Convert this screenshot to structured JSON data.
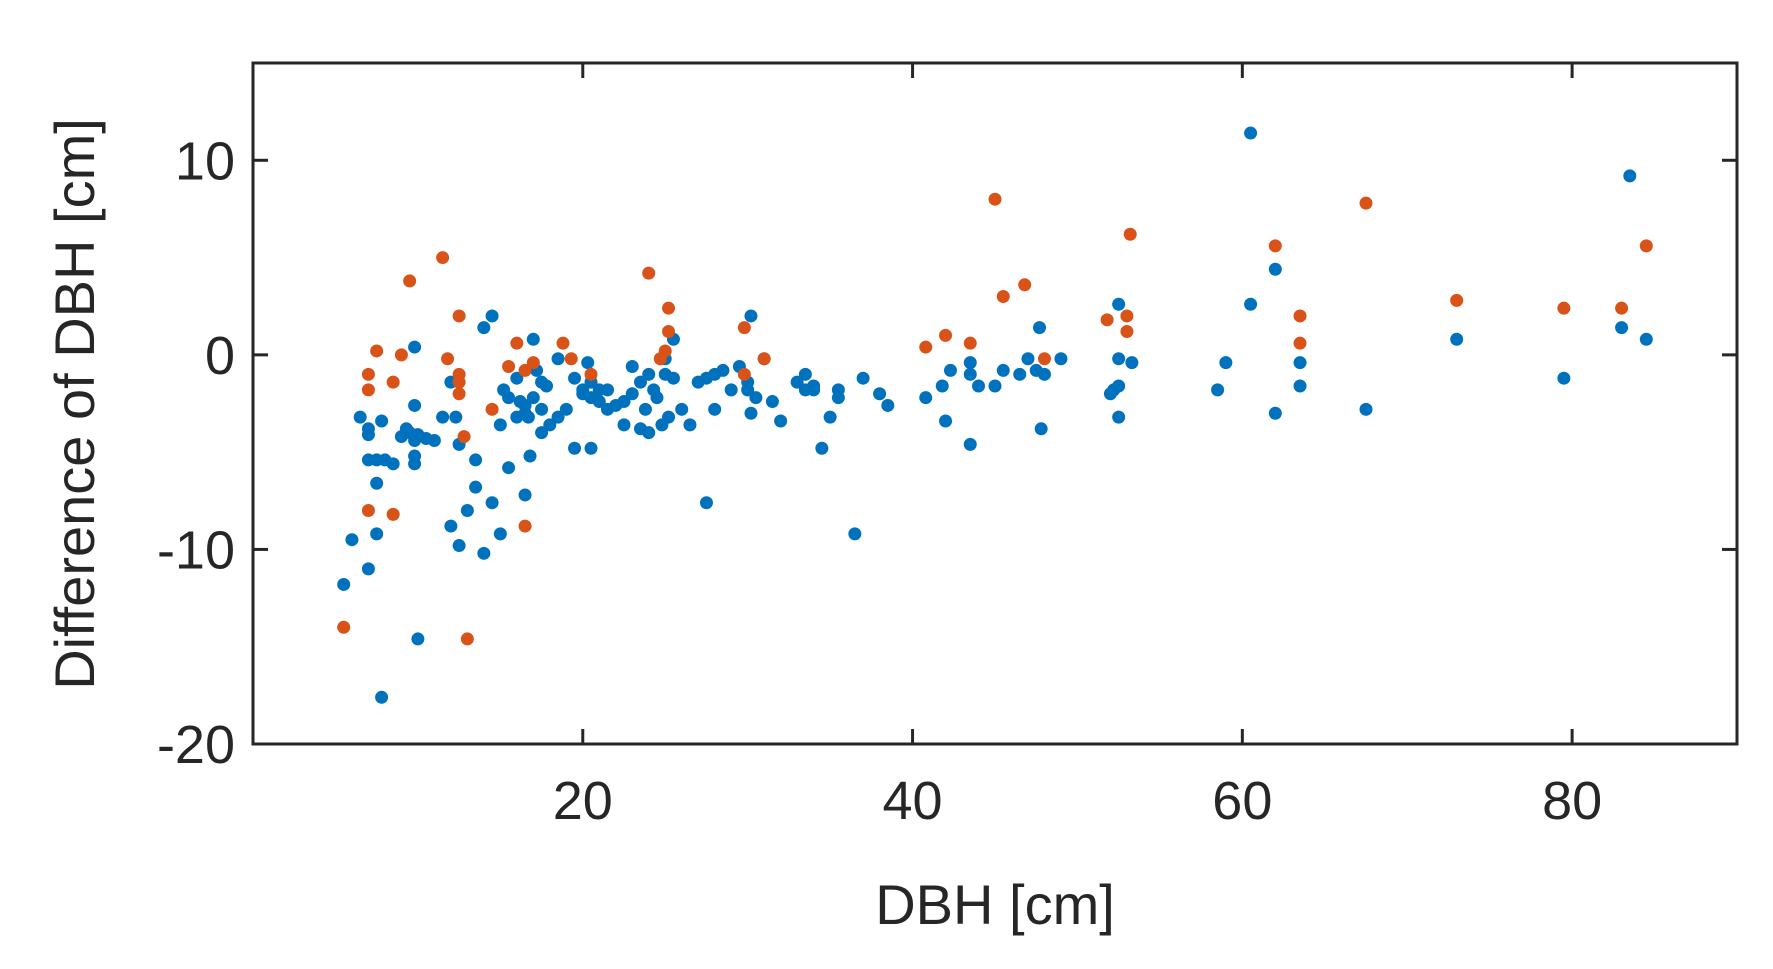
{
  "chart_data": {
    "type": "scatter",
    "xlabel": "DBH [cm]",
    "ylabel": "Difference of DBH [cm]",
    "xlim": [
      0,
      90
    ],
    "ylim": [
      -20,
      15
    ],
    "xticks": [
      20,
      40,
      60,
      80
    ],
    "yticks": [
      -20,
      -10,
      0,
      10
    ],
    "grid": false,
    "series": [
      {
        "color": "#0072BD",
        "points": [
          [
            5.5,
            -11.8
          ],
          [
            6,
            -9.5
          ],
          [
            6.5,
            -3.2
          ],
          [
            7,
            -3.8
          ],
          [
            7,
            -4.1
          ],
          [
            7,
            -5.4
          ],
          [
            7,
            -11
          ],
          [
            7.5,
            -5.4
          ],
          [
            7.5,
            -6.6
          ],
          [
            7.5,
            -9.2
          ],
          [
            7.8,
            -3.4
          ],
          [
            7.8,
            -17.6
          ],
          [
            8,
            -5.4
          ],
          [
            8.5,
            -5.6
          ],
          [
            9,
            -4.2
          ],
          [
            9.3,
            -3.8
          ],
          [
            9.5,
            -4
          ],
          [
            9.8,
            -4.4
          ],
          [
            9.8,
            -5.2
          ],
          [
            9.8,
            -5.6
          ],
          [
            9.8,
            -2.6
          ],
          [
            9.8,
            0.4
          ],
          [
            10,
            -14.6
          ],
          [
            10,
            -4.1
          ],
          [
            10.5,
            -4.3
          ],
          [
            11,
            -4.4
          ],
          [
            11.5,
            -3.2
          ],
          [
            12,
            -1.4
          ],
          [
            12,
            -8.8
          ],
          [
            12.3,
            -3.2
          ],
          [
            12.5,
            -4.6
          ],
          [
            12.5,
            -9.8
          ],
          [
            13,
            -8
          ],
          [
            13.5,
            -5.4
          ],
          [
            13.5,
            -6.8
          ],
          [
            14,
            1.4
          ],
          [
            14,
            -10.2
          ],
          [
            14.5,
            -7.6
          ],
          [
            14.5,
            2
          ],
          [
            15,
            -3.6
          ],
          [
            15,
            -9.2
          ],
          [
            15.2,
            -1.8
          ],
          [
            15.5,
            -2.2
          ],
          [
            15.5,
            -5.8
          ],
          [
            16,
            -1.2
          ],
          [
            16,
            -3.2
          ],
          [
            16.2,
            -2.4
          ],
          [
            16.5,
            -2.6
          ],
          [
            16.5,
            -3
          ],
          [
            16.5,
            -7.2
          ],
          [
            16.7,
            -3.2
          ],
          [
            16.8,
            -5.2
          ],
          [
            17,
            0.8
          ],
          [
            17,
            -2.2
          ],
          [
            17.2,
            -0.8
          ],
          [
            17.5,
            -1.4
          ],
          [
            17.5,
            -2.8
          ],
          [
            17.5,
            -4
          ],
          [
            17.8,
            -1.6
          ],
          [
            18,
            -3.6
          ],
          [
            18.5,
            -0.2
          ],
          [
            18.5,
            -3.2
          ],
          [
            19,
            -2.8
          ],
          [
            19.5,
            -1.2
          ],
          [
            19.5,
            -4.8
          ],
          [
            20,
            -1.8
          ],
          [
            20,
            -2
          ],
          [
            20.3,
            -0.4
          ],
          [
            20.5,
            -1.4
          ],
          [
            20.5,
            -2.2
          ],
          [
            20.5,
            -4.8
          ],
          [
            21,
            -1.8
          ],
          [
            21,
            -2.4
          ],
          [
            21.5,
            -1.8
          ],
          [
            21.5,
            -2.8
          ],
          [
            22,
            -2.6
          ],
          [
            22.5,
            -2.4
          ],
          [
            22.5,
            -3.6
          ],
          [
            23,
            -0.6
          ],
          [
            23,
            -2
          ],
          [
            23.5,
            -1.4
          ],
          [
            23.5,
            -3.8
          ],
          [
            23.8,
            -2.8
          ],
          [
            24,
            -1
          ],
          [
            24,
            -4
          ],
          [
            24.3,
            -1.8
          ],
          [
            24.5,
            -2.2
          ],
          [
            24.8,
            -3.6
          ],
          [
            25,
            -0.2
          ],
          [
            25,
            -1
          ],
          [
            25.2,
            -3.2
          ],
          [
            25.5,
            0.8
          ],
          [
            25.5,
            -1.2
          ],
          [
            26,
            -2.8
          ],
          [
            26.5,
            -3.6
          ],
          [
            27,
            -1.4
          ],
          [
            27.5,
            -1.2
          ],
          [
            27.5,
            -7.6
          ],
          [
            28,
            -1
          ],
          [
            28,
            -2.8
          ],
          [
            28.5,
            -0.8
          ],
          [
            29,
            -1.8
          ],
          [
            29.5,
            -0.6
          ],
          [
            30,
            -1.4
          ],
          [
            30,
            -1.8
          ],
          [
            30.2,
            -3
          ],
          [
            30.2,
            2
          ],
          [
            30.5,
            -2.2
          ],
          [
            31,
            -0.2
          ],
          [
            31.5,
            -2.4
          ],
          [
            32,
            -3.4
          ],
          [
            33,
            -1.4
          ],
          [
            33.5,
            -1
          ],
          [
            33.5,
            -1.8
          ],
          [
            34,
            -1.6
          ],
          [
            34,
            -1.8
          ],
          [
            34.5,
            -4.8
          ],
          [
            35,
            -3.2
          ],
          [
            35.5,
            -1.8
          ],
          [
            35.5,
            -2.2
          ],
          [
            36.5,
            -9.2
          ],
          [
            37,
            -1.2
          ],
          [
            38,
            -2
          ],
          [
            38.5,
            -2.6
          ],
          [
            40.8,
            -2.2
          ],
          [
            41.8,
            -1.6
          ],
          [
            42,
            -3.4
          ],
          [
            42.3,
            -0.8
          ],
          [
            43.5,
            -1
          ],
          [
            43.5,
            -0.4
          ],
          [
            43.5,
            -4.6
          ],
          [
            44,
            -1.6
          ],
          [
            45,
            -1.6
          ],
          [
            45.5,
            -0.8
          ],
          [
            46.5,
            -1
          ],
          [
            47,
            -0.2
          ],
          [
            47.5,
            -0.8
          ],
          [
            47.7,
            1.4
          ],
          [
            47.8,
            -3.8
          ],
          [
            48,
            -1
          ],
          [
            49,
            -0.2
          ],
          [
            52,
            -2
          ],
          [
            52.2,
            -1.8
          ],
          [
            52.5,
            2.6
          ],
          [
            52.5,
            -0.2
          ],
          [
            52.5,
            -1.6
          ],
          [
            52.5,
            -3.2
          ],
          [
            53.3,
            -0.4
          ],
          [
            58.5,
            -1.8
          ],
          [
            59,
            -0.4
          ],
          [
            60.5,
            11.4
          ],
          [
            60.5,
            2.6
          ],
          [
            62,
            4.4
          ],
          [
            62,
            -3
          ],
          [
            63.5,
            -0.4
          ],
          [
            63.5,
            -1.6
          ],
          [
            67.5,
            -2.8
          ],
          [
            73,
            0.8
          ],
          [
            79.5,
            -1.2
          ],
          [
            83,
            1.4
          ],
          [
            83.5,
            9.2
          ],
          [
            84.5,
            0.8
          ]
        ]
      },
      {
        "color": "#D95319",
        "points": [
          [
            5.5,
            -14
          ],
          [
            7,
            -1
          ],
          [
            7,
            -1.8
          ],
          [
            7,
            -8
          ],
          [
            7.5,
            0.2
          ],
          [
            8.5,
            -1.4
          ],
          [
            8.5,
            -8.2
          ],
          [
            9,
            0
          ],
          [
            9.5,
            3.8
          ],
          [
            11.5,
            5
          ],
          [
            11.8,
            -0.2
          ],
          [
            12.5,
            -1
          ],
          [
            12.5,
            2
          ],
          [
            12.5,
            -1.4
          ],
          [
            12.5,
            -2
          ],
          [
            12.8,
            -4.2
          ],
          [
            13,
            -14.6
          ],
          [
            14.5,
            -2.8
          ],
          [
            15.5,
            -0.6
          ],
          [
            16,
            0.6
          ],
          [
            16.5,
            -8.8
          ],
          [
            16.5,
            -0.8
          ],
          [
            17,
            -0.4
          ],
          [
            18.8,
            0.6
          ],
          [
            19.3,
            -0.2
          ],
          [
            20.5,
            -1
          ],
          [
            24,
            4.2
          ],
          [
            24.7,
            -0.2
          ],
          [
            25,
            0.2
          ],
          [
            25.2,
            1.2
          ],
          [
            25.2,
            2.4
          ],
          [
            29.8,
            1.4
          ],
          [
            29.8,
            -1
          ],
          [
            31,
            -0.2
          ],
          [
            40.8,
            0.4
          ],
          [
            42,
            1
          ],
          [
            43.5,
            0.6
          ],
          [
            45,
            8
          ],
          [
            45.5,
            3
          ],
          [
            46.8,
            3.6
          ],
          [
            48,
            -0.2
          ],
          [
            51.8,
            1.8
          ],
          [
            53,
            1.2
          ],
          [
            53,
            2
          ],
          [
            53.2,
            6.2
          ],
          [
            62,
            5.6
          ],
          [
            63.5,
            2
          ],
          [
            63.5,
            0.6
          ],
          [
            67.5,
            7.8
          ],
          [
            73,
            2.8
          ],
          [
            79.5,
            2.4
          ],
          [
            83,
            2.4
          ],
          [
            84.5,
            5.6
          ]
        ]
      }
    ]
  }
}
